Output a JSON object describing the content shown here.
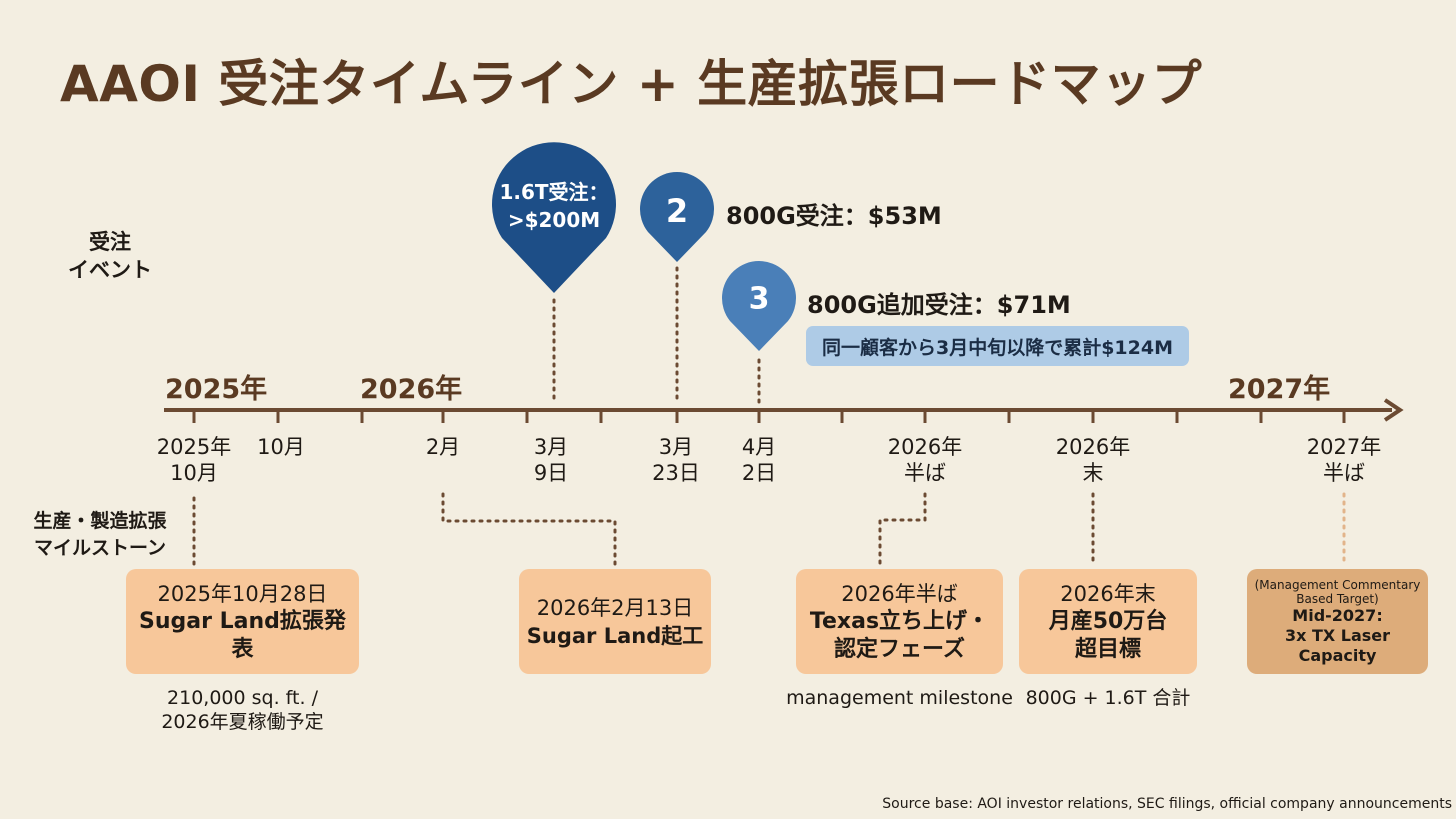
{
  "title": "AAOI 受注タイムライン + 生産拡張ロードマップ",
  "labels": {
    "orders_line1": "受注",
    "orders_line2": "イベント",
    "production_line1": "生産・製造拡張",
    "production_line2": "マイルストーン"
  },
  "years": [
    "2025年",
    "2026年",
    "2027年"
  ],
  "ticks": [
    {
      "line1": "2025年",
      "line2": "10月"
    },
    {
      "line1": "10月",
      "line2": ""
    },
    {
      "line1": "2月",
      "line2": ""
    },
    {
      "line1": "3月",
      "line2": "9日"
    },
    {
      "line1": "3月",
      "line2": "23日"
    },
    {
      "line1": "4月",
      "line2": "2日"
    },
    {
      "line1": "2026年",
      "line2": "半ば"
    },
    {
      "line1": "2026年",
      "line2": "末"
    },
    {
      "line1": "2027年",
      "line2": "半ば"
    }
  ],
  "events": [
    {
      "pin_line1": "1.6T受注：",
      "pin_line2": ">$200M"
    },
    {
      "pin": "2",
      "text": "800G受注：$53M"
    },
    {
      "pin": "3",
      "text": "800G追加受注：$71M",
      "note": "同一顧客から3月中旬以降で累計$124M"
    }
  ],
  "milestones": [
    {
      "date": "2025年10月28日",
      "text": "Sugar Land拡張発表",
      "caption_line1": "210,000 sq. ft. /",
      "caption_line2": "2026年夏稼働予定"
    },
    {
      "date": "2026年2月13日",
      "text": "Sugar Land起工"
    },
    {
      "date": "2026年半ば",
      "text_line1": "Texas立ち上げ・",
      "text_line2": "認定フェーズ",
      "caption": "management milestone"
    },
    {
      "date": "2026年末",
      "text_line1": "月産50万台",
      "text_line2": "超目標",
      "caption": "800G + 1.6T 合計"
    },
    {
      "note_line1": "(Management Commentary",
      "note_line2": "Based Target)",
      "text_line1": "Mid-2027:",
      "text_line2": "3x TX Laser",
      "text_line3": "Capacity"
    }
  ],
  "source": "Source base: AOI investor relations, SEC filings, official company announcements",
  "colors": {
    "background": "#f3eee1",
    "axis": "#6b4a32",
    "title": "#5a3a22",
    "pin_dark": "#1d4e87",
    "pin_mid": "#2d629b",
    "pin_light": "#4a7fb8",
    "box": "#f7c79a",
    "box_dark": "#ddac7a",
    "note": "#aecbe6"
  }
}
